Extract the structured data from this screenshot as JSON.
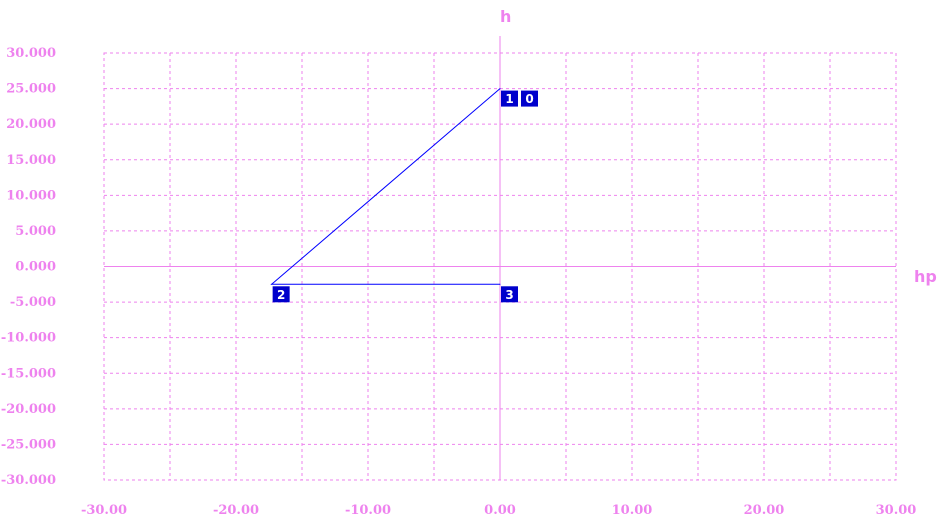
{
  "chart_data": {
    "type": "line",
    "xlabel": "hp",
    "ylabel": "h",
    "xlim": [
      -30,
      30
    ],
    "ylim": [
      -30,
      30
    ],
    "grid": true,
    "x_ticks": [
      -30,
      -25,
      -20,
      -15,
      -10,
      -5,
      0,
      5,
      10,
      15,
      20,
      25,
      30
    ],
    "x_tick_labels": [
      "-30.00",
      "",
      "-20.00",
      "",
      "-10.00",
      "",
      "0.00",
      "",
      "10.00",
      "",
      "20.00",
      "",
      "30.00"
    ],
    "y_ticks": [
      30,
      25,
      20,
      15,
      10,
      5,
      0,
      -5,
      -10,
      -15,
      -20,
      -25,
      -30
    ],
    "y_tick_labels": [
      "30.000",
      "25.000",
      "20.000",
      "15.000",
      "10.000",
      "5.000",
      "0.000",
      "-5.000",
      "-10.000",
      "-15.000",
      "-20.000",
      "-25.000",
      "-30.000"
    ],
    "series": [
      {
        "points": [
          {
            "x": 0,
            "y": 25
          },
          {
            "x": -17.3,
            "y": -2.5
          },
          {
            "x": 0,
            "y": -2.5
          }
        ]
      }
    ],
    "nodes": [
      {
        "labels": [
          "1",
          "0"
        ],
        "x": 0,
        "y": 25
      },
      {
        "labels": [
          "2"
        ],
        "x": -17.3,
        "y": -2.5
      },
      {
        "labels": [
          "3"
        ],
        "x": 0,
        "y": -2.5
      }
    ],
    "colors": {
      "grid": "#ee82ee",
      "axes": "#ee82ee",
      "text": "#ee82ee",
      "line": "#0000ff",
      "node_fill": "#0000cc",
      "node_text": "#ffffff"
    }
  }
}
